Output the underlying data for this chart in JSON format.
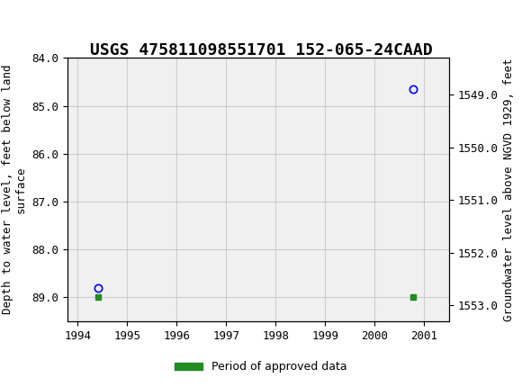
{
  "title": "USGS 475811098551701 152-065-24CAAD",
  "header_bg_color": "#1a7040",
  "plot_bg_color": "#f0f0f0",
  "grid_color": "#cccccc",
  "left_ylabel": "Depth to water level, feet below land\nsurface",
  "right_ylabel": "Groundwater level above NGVD 1929, feet",
  "xlim": [
    1993.8,
    2001.5
  ],
  "ylim_left": [
    84.0,
    89.5
  ],
  "ylim_right": [
    1548.3,
    1553.3
  ],
  "yticks_left": [
    84.0,
    85.0,
    86.0,
    87.0,
    88.0,
    89.0
  ],
  "yticks_right": [
    1549.0,
    1550.0,
    1551.0,
    1552.0,
    1553.0
  ],
  "xticks": [
    1994,
    1995,
    1996,
    1997,
    1998,
    1999,
    2000,
    2001
  ],
  "data_points": [
    {
      "x": 1994.42,
      "y_left": 88.8
    },
    {
      "x": 2000.78,
      "y_left": 84.65
    }
  ],
  "approved_data_x": [
    1994.42,
    2000.78
  ],
  "approved_data_y": [
    89.0,
    89.0
  ],
  "legend_label": "Period of approved data",
  "legend_color": "#228b22",
  "font_family": "monospace",
  "title_fontsize": 13,
  "tick_fontsize": 9,
  "label_fontsize": 9
}
